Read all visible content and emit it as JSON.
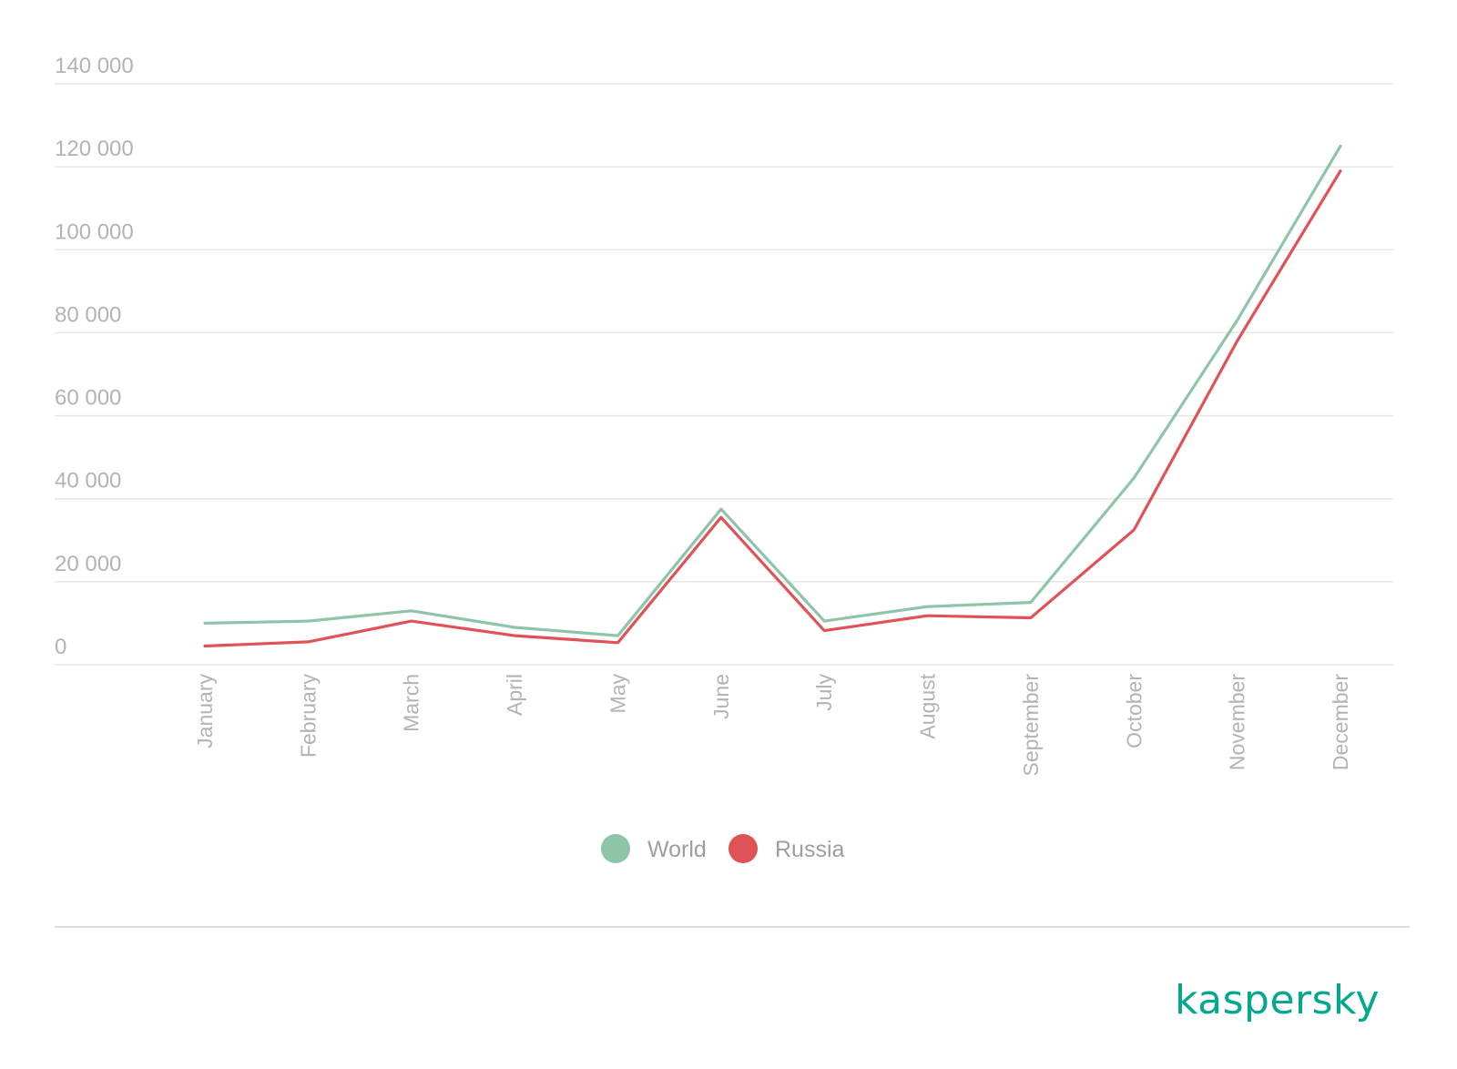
{
  "chart_data": {
    "type": "line",
    "categories": [
      "January",
      "February",
      "March",
      "April",
      "May",
      "June",
      "July",
      "August",
      "September",
      "October",
      "November",
      "December"
    ],
    "series": [
      {
        "name": "World",
        "color": "#8ec5a8",
        "values": [
          10000,
          10500,
          13000,
          9000,
          7000,
          37500,
          10500,
          14000,
          15000,
          45000,
          83000,
          125000
        ]
      },
      {
        "name": "Russia",
        "color": "#df5257",
        "values": [
          4500,
          5500,
          10500,
          7000,
          5300,
          35500,
          8200,
          11800,
          11300,
          32500,
          78000,
          119000
        ]
      }
    ],
    "yticks": [
      0,
      20000,
      40000,
      60000,
      80000,
      100000,
      120000,
      140000
    ],
    "ytick_labels": [
      "0",
      "20 000",
      "40 000",
      "60 000",
      "80 000",
      "100 000",
      "120 000",
      "140 000"
    ],
    "ylim": [
      0,
      140000
    ],
    "grid": true,
    "legend": "bottom-center"
  },
  "brand": {
    "name": "kaspersky",
    "color": "#00a88e"
  }
}
